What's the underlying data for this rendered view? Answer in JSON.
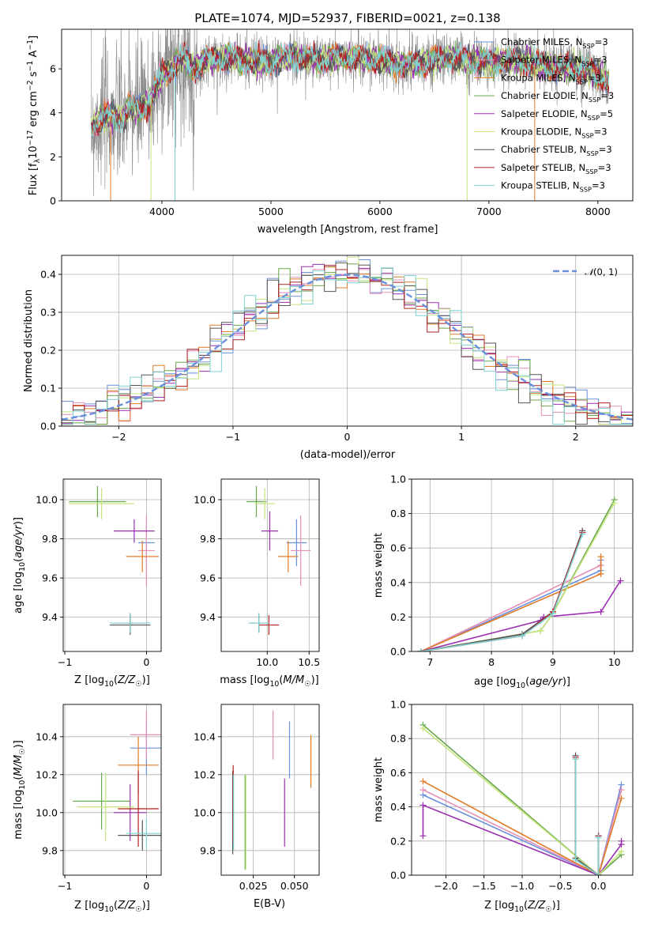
{
  "colors": {
    "chabrier_miles": "#6a8fdc",
    "salpeter_miles": "#e58fb8",
    "kroupa_miles": "#e07b28",
    "chabrier_elodie": "#6aa84f",
    "salpeter_elodie": "#9a2fb0",
    "kroupa_elodie": "#c6e580",
    "chabrier_stelib": "#555555",
    "salpeter_stelib": "#b22222",
    "kroupa_stelib": "#7fd3d3",
    "gaussian": "#6a8fdc",
    "grid": "#b0b0b0"
  },
  "chart_data": [
    {
      "id": "spectrum",
      "type": "line",
      "title": "PLATE=1074, MJD=52937, FIBERID=0021, z=0.138",
      "xlabel": "wavelength [Angstrom, rest frame]",
      "ylabel": "Flux [f_λ 10^-17 erg cm^-2 s^-1 A^-1]",
      "xlim": [
        3080,
        8320
      ],
      "ylim": [
        0,
        7.8
      ],
      "xticks": [
        4000,
        5000,
        6000,
        7000,
        8000
      ],
      "yticks": [
        0,
        2,
        4,
        6
      ],
      "grid": false,
      "legend_position": "right",
      "wavelength_range": [
        3350,
        8100
      ],
      "model_profile": [
        [
          3350,
          3.4
        ],
        [
          3500,
          3.9
        ],
        [
          3650,
          3.7
        ],
        [
          3700,
          4.2
        ],
        [
          3800,
          4.1
        ],
        [
          3900,
          4.6
        ],
        [
          4000,
          5.7
        ],
        [
          4100,
          6.1
        ],
        [
          4200,
          6.5
        ],
        [
          4300,
          6.0
        ],
        [
          4400,
          6.4
        ],
        [
          4600,
          6.5
        ],
        [
          4800,
          6.4
        ],
        [
          5000,
          6.3
        ],
        [
          5200,
          6.6
        ],
        [
          5400,
          6.4
        ],
        [
          5600,
          6.5
        ],
        [
          5800,
          6.5
        ],
        [
          6000,
          6.4
        ],
        [
          6200,
          6.2
        ],
        [
          6400,
          6.3
        ],
        [
          6600,
          6.5
        ],
        [
          6800,
          6.4
        ],
        [
          7000,
          6.3
        ],
        [
          7200,
          6.4
        ],
        [
          7400,
          6.3
        ],
        [
          7600,
          6.0
        ],
        [
          7800,
          6.1
        ],
        [
          8000,
          5.7
        ],
        [
          8100,
          5.5
        ]
      ],
      "series": [
        {
          "name": "Chabrier MILES",
          "nssp": "3"
        },
        {
          "name": "Salpeter MILES",
          "nssp": "3"
        },
        {
          "name": "Kroupa MILES",
          "nssp": "3"
        },
        {
          "name": "Chabrier ELODIE",
          "nssp": "3"
        },
        {
          "name": "Salpeter ELODIE",
          "nssp": "5"
        },
        {
          "name": "Kroupa ELODIE",
          "nssp": "3"
        },
        {
          "name": "Chabrier STELIB",
          "nssp": "3"
        },
        {
          "name": "Salpeter STELIB",
          "nssp": "3"
        },
        {
          "name": "Kroupa STELIB",
          "nssp": "3"
        }
      ]
    },
    {
      "id": "residuals",
      "type": "step",
      "xlabel": "(data-model)/error",
      "ylabel": "Normed distribution",
      "xlim": [
        -2.5,
        2.5
      ],
      "ylim": [
        0,
        0.45
      ],
      "xticks": [
        -2,
        -1,
        0,
        1,
        2
      ],
      "yticks": [
        0.0,
        0.1,
        0.2,
        0.3,
        0.4
      ],
      "grid": true,
      "legend_position": "top-right",
      "gaussian_label": "N(0,1)",
      "bin_width": 0.1
    },
    {
      "id": "age_vs_Z",
      "type": "errorbar",
      "xlabel": "Z [log10(Z/Z☉)]",
      "ylabel": "age [log10(age/yr)]",
      "xlim": [
        -1.02,
        0.18
      ],
      "ylim": [
        9.225,
        10.105
      ],
      "xticks": [
        -1,
        0
      ],
      "yticks": [
        9.4,
        9.6,
        9.8,
        10.0
      ],
      "grid": true,
      "points": [
        {
          "s": "chabrier_miles",
          "x": 0.0,
          "y": 9.78,
          "xe": 0.1,
          "ye": 0.1
        },
        {
          "s": "salpeter_miles",
          "x": 0.0,
          "y": 9.74,
          "xe": 0.1,
          "ye": 0.18
        },
        {
          "s": "kroupa_miles",
          "x": -0.05,
          "y": 9.71,
          "xe": 0.2,
          "ye": 0.08
        },
        {
          "s": "chabrier_elodie",
          "x": -0.6,
          "y": 9.99,
          "xe": 0.35,
          "ye": 0.08
        },
        {
          "s": "salpeter_elodie",
          "x": -0.15,
          "y": 9.84,
          "xe": 0.25,
          "ye": 0.06
        },
        {
          "s": "kroupa_elodie",
          "x": -0.55,
          "y": 9.98,
          "xe": 0.4,
          "ye": 0.08
        },
        {
          "s": "chabrier_stelib",
          "x": -0.2,
          "y": 9.36,
          "xe": 0.25,
          "ye": 0.05
        },
        {
          "s": "salpeter_stelib",
          "x": -0.2,
          "y": 9.37,
          "xe": 0.2,
          "ye": 0.05
        },
        {
          "s": "kroupa_stelib",
          "x": -0.2,
          "y": 9.37,
          "xe": 0.25,
          "ye": 0.05
        }
      ]
    },
    {
      "id": "age_vs_mass",
      "type": "errorbar",
      "xlabel": "mass [log10(M/M☉)]",
      "ylabel": "",
      "xlim": [
        9.45,
        10.62
      ],
      "ylim": [
        9.225,
        10.105
      ],
      "xticks": [
        10.0,
        10.5
      ],
      "yticks": [
        9.4,
        9.6,
        9.8,
        10.0
      ],
      "grid": true,
      "points": [
        {
          "s": "chabrier_miles",
          "x": 10.35,
          "y": 9.78,
          "xe": 0.12,
          "ye": 0.12
        },
        {
          "s": "salpeter_miles",
          "x": 10.4,
          "y": 9.74,
          "xe": 0.12,
          "ye": 0.18
        },
        {
          "s": "kroupa_miles",
          "x": 10.25,
          "y": 9.71,
          "xe": 0.12,
          "ye": 0.08
        },
        {
          "s": "chabrier_elodie",
          "x": 9.87,
          "y": 9.99,
          "xe": 0.12,
          "ye": 0.08
        },
        {
          "s": "salpeter_elodie",
          "x": 10.03,
          "y": 9.84,
          "xe": 0.1,
          "ye": 0.1
        },
        {
          "s": "kroupa_elodie",
          "x": 9.97,
          "y": 9.98,
          "xe": 0.12,
          "ye": 0.08
        },
        {
          "s": "chabrier_stelib",
          "x": 9.9,
          "y": 9.37,
          "xe": 0.12,
          "ye": 0.05
        },
        {
          "s": "salpeter_stelib",
          "x": 10.02,
          "y": 9.36,
          "xe": 0.12,
          "ye": 0.05
        },
        {
          "s": "kroupa_stelib",
          "x": 9.9,
          "y": 9.37,
          "xe": 0.12,
          "ye": 0.05
        }
      ]
    },
    {
      "id": "weight_vs_age",
      "type": "line",
      "xlabel": "age [log10(age/yr)]",
      "ylabel": "mass weight",
      "xlim": [
        6.7,
        10.3
      ],
      "ylim": [
        0,
        1.0
      ],
      "xticks": [
        7,
        8,
        9,
        10
      ],
      "yticks": [
        0.0,
        0.2,
        0.4,
        0.6,
        0.8,
        1.0
      ],
      "grid": true,
      "series": [
        {
          "s": "chabrier_miles",
          "x": [
            6.85,
            9.78,
            9.78
          ],
          "y": [
            0.0,
            0.47,
            0.53
          ]
        },
        {
          "s": "salpeter_miles",
          "x": [
            6.85,
            9.78,
            9.78
          ],
          "y": [
            0.0,
            0.5,
            0.5
          ]
        },
        {
          "s": "kroupa_miles",
          "x": [
            6.85,
            9.78,
            9.78
          ],
          "y": [
            0.0,
            0.45,
            0.55
          ]
        },
        {
          "s": "chabrier_elodie",
          "x": [
            6.85,
            8.8,
            9.0,
            10.0
          ],
          "y": [
            0.0,
            0.12,
            0.22,
            0.88
          ]
        },
        {
          "s": "salpeter_elodie",
          "x": [
            6.85,
            8.8,
            8.85,
            9.78,
            10.1
          ],
          "y": [
            0.0,
            0.18,
            0.2,
            0.23,
            0.41
          ]
        },
        {
          "s": "kroupa_elodie",
          "x": [
            6.85,
            8.8,
            9.0,
            10.0
          ],
          "y": [
            0.0,
            0.12,
            0.22,
            0.86
          ]
        },
        {
          "s": "chabrier_stelib",
          "x": [
            6.85,
            8.5,
            9.0,
            9.48
          ],
          "y": [
            0.0,
            0.1,
            0.23,
            0.7
          ]
        },
        {
          "s": "salpeter_stelib",
          "x": [
            6.85,
            8.5,
            9.0,
            9.48
          ],
          "y": [
            0.0,
            0.09,
            0.23,
            0.69
          ]
        },
        {
          "s": "kroupa_stelib",
          "x": [
            6.85,
            8.5,
            9.0,
            9.48
          ],
          "y": [
            0.0,
            0.09,
            0.22,
            0.68
          ]
        }
      ]
    },
    {
      "id": "mass_vs_Z",
      "type": "errorbar",
      "xlabel": "Z [log10(Z/Z☉)]",
      "ylabel": "mass [log10(M/M☉)]",
      "xlim": [
        -1.02,
        0.18
      ],
      "ylim": [
        9.67,
        10.57
      ],
      "xticks": [
        -1,
        0
      ],
      "yticks": [
        9.8,
        10.0,
        10.2,
        10.4
      ],
      "grid": true,
      "points": [
        {
          "s": "chabrier_miles",
          "x": 0.0,
          "y": 10.34,
          "xe": 0.2,
          "ye": 0.14
        },
        {
          "s": "salpeter_miles",
          "x": 0.0,
          "y": 10.41,
          "xe": 0.2,
          "ye": 0.13
        },
        {
          "s": "kroupa_miles",
          "x": -0.1,
          "y": 10.25,
          "xe": 0.25,
          "ye": 0.15
        },
        {
          "s": "chabrier_elodie",
          "x": -0.55,
          "y": 10.06,
          "xe": 0.35,
          "ye": 0.15
        },
        {
          "s": "salpeter_elodie",
          "x": -0.2,
          "y": 10.0,
          "xe": 0.2,
          "ye": 0.15
        },
        {
          "s": "kroupa_elodie",
          "x": -0.5,
          "y": 10.03,
          "xe": 0.35,
          "ye": 0.18
        },
        {
          "s": "chabrier_stelib",
          "x": -0.05,
          "y": 9.88,
          "xe": 0.3,
          "ye": 0.08
        },
        {
          "s": "salpeter_stelib",
          "x": -0.1,
          "y": 10.02,
          "xe": 0.25,
          "ye": 0.2
        },
        {
          "s": "kroupa_stelib",
          "x": 0.0,
          "y": 9.89,
          "xe": 0.25,
          "ye": 0.08
        }
      ]
    },
    {
      "id": "mass_vs_EBV",
      "type": "errorbar",
      "xlabel": "E(B-V)",
      "ylabel": "",
      "xlim": [
        0.0055,
        0.065
      ],
      "ylim": [
        9.67,
        10.57
      ],
      "xticks": [
        0.025,
        0.05
      ],
      "yticks": [
        9.8,
        10.0,
        10.2,
        10.4
      ],
      "grid": true,
      "points": [
        {
          "s": "chabrier_miles",
          "x": 0.047,
          "y": 10.33,
          "xe": 0.0,
          "ye": 0.15
        },
        {
          "s": "salpeter_miles",
          "x": 0.037,
          "y": 10.41,
          "xe": 0.0,
          "ye": 0.13
        },
        {
          "s": "kroupa_miles",
          "x": 0.06,
          "y": 10.27,
          "xe": 0.0,
          "ye": 0.14
        },
        {
          "s": "chabrier_elodie",
          "x": 0.02,
          "y": 9.95,
          "xe": 0.0,
          "ye": 0.25
        },
        {
          "s": "salpeter_elodie",
          "x": 0.044,
          "y": 10.0,
          "xe": 0.0,
          "ye": 0.18
        },
        {
          "s": "kroupa_elodie",
          "x": 0.0205,
          "y": 9.95,
          "xe": 0.0,
          "ye": 0.25
        },
        {
          "s": "chabrier_stelib",
          "x": 0.0125,
          "y": 10.0,
          "xe": 0.0,
          "ye": 0.22
        },
        {
          "s": "salpeter_stelib",
          "x": 0.0128,
          "y": 10.04,
          "xe": 0.0,
          "ye": 0.21
        },
        {
          "s": "kroupa_stelib",
          "x": 0.013,
          "y": 10.0,
          "xe": 0.0,
          "ye": 0.2
        }
      ]
    },
    {
      "id": "weight_vs_Z",
      "type": "line",
      "xlabel": "Z [log10(Z/Z☉)]",
      "ylabel": "mass weight",
      "xlim": [
        -2.45,
        0.45
      ],
      "ylim": [
        0,
        1.0
      ],
      "xticks": [
        -2.0,
        -1.5,
        -1.0,
        -0.5,
        0.0
      ],
      "yticks": [
        0.0,
        0.2,
        0.4,
        0.6,
        0.8,
        1.0
      ],
      "grid": true,
      "series": [
        {
          "s": "chabrier_miles",
          "x": [
            -2.3,
            0.0,
            0.3
          ],
          "y": [
            0.47,
            0.0,
            0.53
          ]
        },
        {
          "s": "salpeter_miles",
          "x": [
            -2.3,
            0.0,
            0.3
          ],
          "y": [
            0.5,
            0.0,
            0.5
          ]
        },
        {
          "s": "kroupa_miles",
          "x": [
            -2.3,
            0.0,
            0.3
          ],
          "y": [
            0.55,
            0.0,
            0.45
          ]
        },
        {
          "s": "chabrier_elodie",
          "x": [
            -2.3,
            0.0,
            0.3
          ],
          "y": [
            0.88,
            0.0,
            0.12
          ]
        },
        {
          "s": "salpeter_elodie",
          "x": [
            -2.3,
            -2.3,
            0.0,
            0.3,
            0.3
          ],
          "y": [
            0.23,
            0.41,
            0.0,
            0.18,
            0.2
          ]
        },
        {
          "s": "kroupa_elodie",
          "x": [
            -2.3,
            0.0,
            0.3
          ],
          "y": [
            0.86,
            0.0,
            0.14
          ]
        },
        {
          "s": "chabrier_stelib",
          "x": [
            -0.3,
            -0.3,
            0.0,
            0.0
          ],
          "y": [
            0.7,
            0.1,
            0.0,
            0.23
          ]
        },
        {
          "s": "salpeter_stelib",
          "x": [
            -0.3,
            -0.3,
            0.0,
            0.0
          ],
          "y": [
            0.69,
            0.09,
            0.0,
            0.23
          ]
        },
        {
          "s": "kroupa_stelib",
          "x": [
            -0.3,
            -0.3,
            0.0,
            0.0
          ],
          "y": [
            0.68,
            0.09,
            0.0,
            0.22
          ]
        }
      ]
    }
  ]
}
